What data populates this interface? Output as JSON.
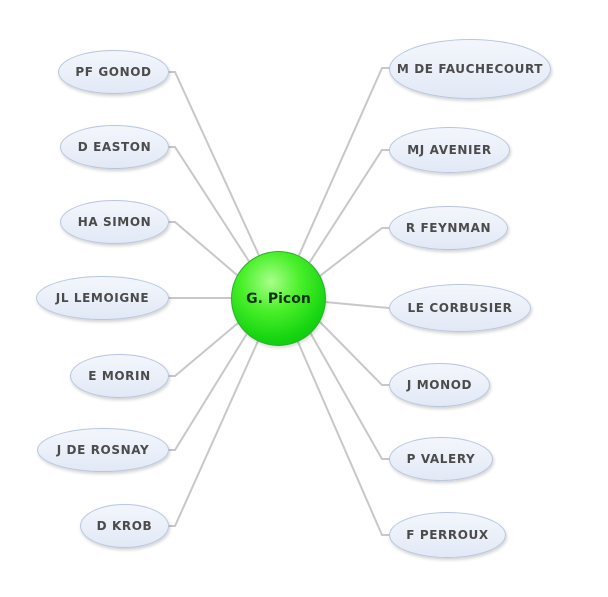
{
  "center": {
    "label": "G. Picon",
    "color": "#22dd11"
  },
  "connector_color": "#c8c8c8",
  "left_nodes": [
    {
      "label": "PF GONOD"
    },
    {
      "label": "D EASTON"
    },
    {
      "label": "HA SIMON"
    },
    {
      "label": "JL LEMOIGNE"
    },
    {
      "label": "E MORIN"
    },
    {
      "label": "J DE ROSNAY"
    },
    {
      "label": "D KROB"
    }
  ],
  "right_nodes": [
    {
      "label": "M DE FAUCHECOURT"
    },
    {
      "label": "MJ AVENIER"
    },
    {
      "label": "R FEYNMAN"
    },
    {
      "label": "LE CORBUSIER"
    },
    {
      "label": "J MONOD"
    },
    {
      "label": "P VALERY"
    },
    {
      "label": "F PERROUX"
    }
  ]
}
